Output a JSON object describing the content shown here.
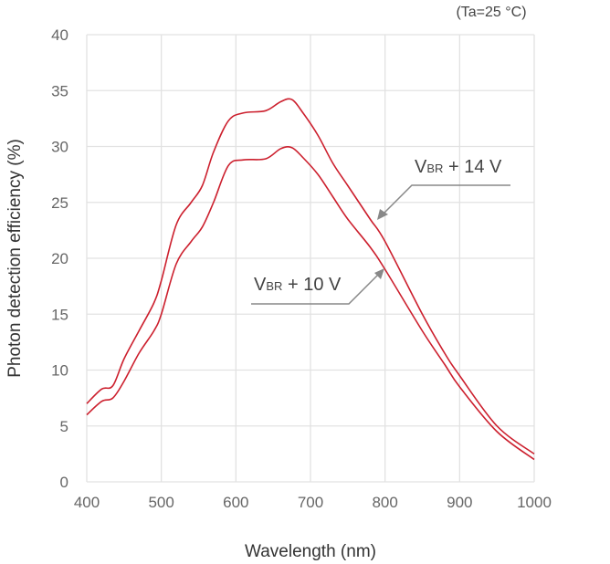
{
  "chart_data": {
    "type": "line",
    "title": "",
    "condition_note": "(Ta=25 °C)",
    "xlabel": "Wavelength (nm)",
    "ylabel": "Photon detection efficiency (%)",
    "xlim": [
      400,
      1000
    ],
    "ylim": [
      0,
      40
    ],
    "xticks": [
      400,
      500,
      600,
      700,
      800,
      900,
      1000
    ],
    "yticks": [
      0,
      5,
      10,
      15,
      20,
      25,
      30,
      35,
      40
    ],
    "grid": true,
    "line_color": "#cc1f2d",
    "series": [
      {
        "name": "VBR + 14 V",
        "label_main": "V",
        "label_sub": "BR",
        "label_rest": " + 14 V",
        "x": [
          400,
          420,
          435,
          450,
          470,
          490,
          500,
          520,
          540,
          555,
          570,
          590,
          610,
          640,
          660,
          675,
          690,
          710,
          730,
          750,
          780,
          800,
          850,
          880,
          900,
          950,
          1000
        ],
        "y": [
          7.0,
          8.3,
          8.6,
          11,
          13.5,
          16,
          18,
          23,
          25,
          26.5,
          29.5,
          32.3,
          33,
          33.2,
          34,
          34.2,
          33,
          31,
          28.5,
          26.5,
          23.5,
          21.5,
          15,
          11.5,
          9.5,
          5,
          2.5
        ]
      },
      {
        "name": "VBR + 10 V",
        "label_main": "V",
        "label_sub": "BR",
        "label_rest": " + 10 V",
        "x": [
          400,
          420,
          435,
          450,
          470,
          490,
          500,
          520,
          540,
          555,
          570,
          590,
          610,
          640,
          660,
          675,
          690,
          710,
          730,
          750,
          780,
          800,
          850,
          880,
          900,
          950,
          1000
        ],
        "y": [
          6.0,
          7.2,
          7.5,
          9,
          11.5,
          13.5,
          15,
          19.5,
          21.5,
          22.8,
          25,
          28.3,
          28.8,
          28.9,
          29.8,
          29.9,
          29,
          27.5,
          25.5,
          23.5,
          21,
          19,
          13.5,
          10.5,
          8.5,
          4.5,
          2
        ]
      }
    ]
  }
}
